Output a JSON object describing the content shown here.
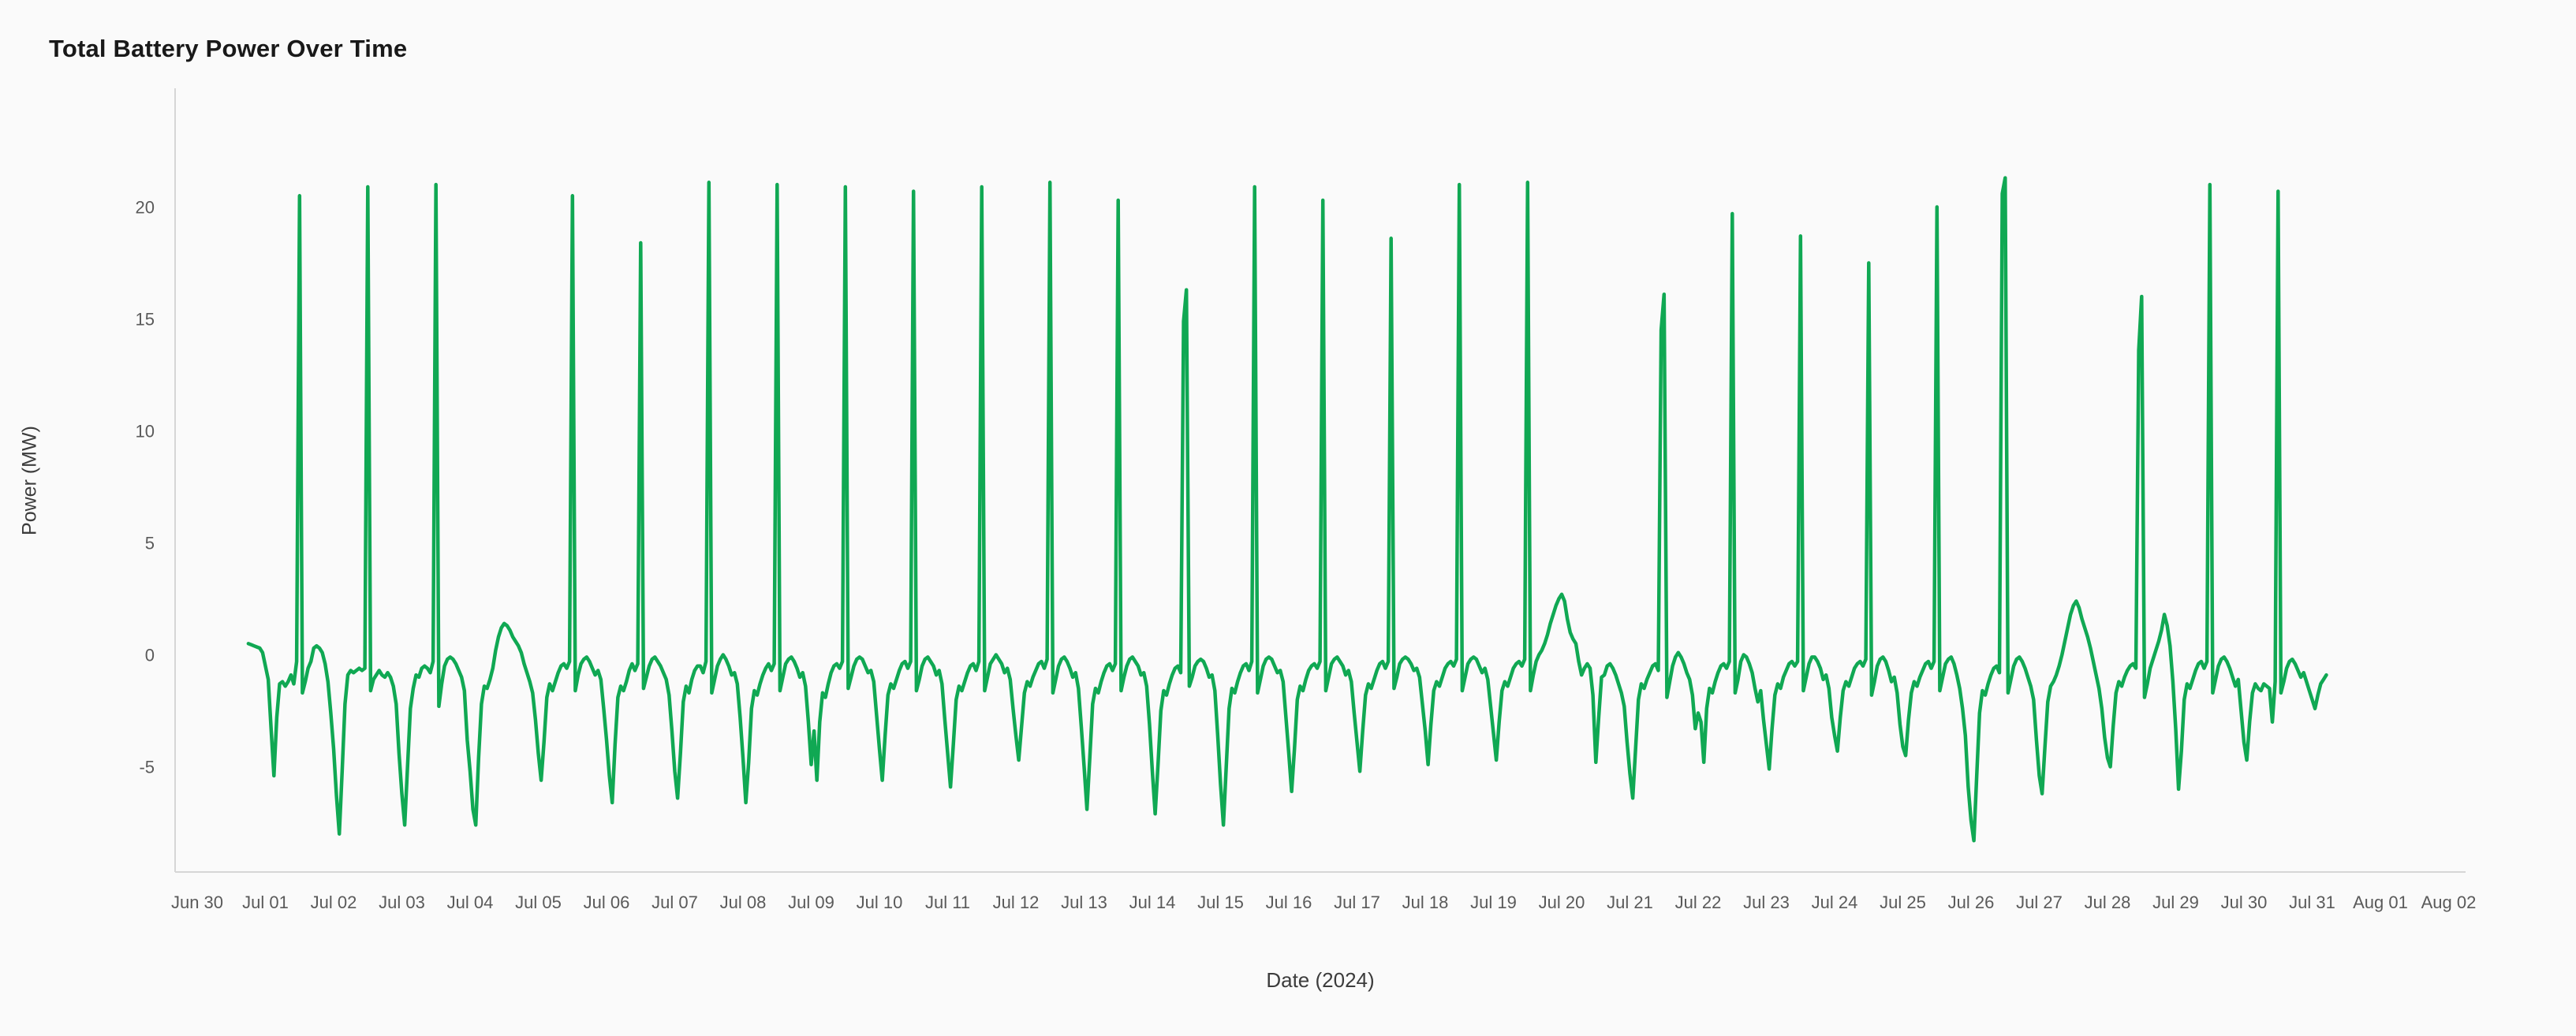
{
  "page": {
    "title": "Total Battery Power Over Time",
    "background_color": "#fafafa"
  },
  "chart_data": {
    "type": "line",
    "title": "Total Battery Power Over Time",
    "xlabel": "Date (2024)",
    "ylabel": "Power (MW)",
    "series_name": "Total battery power",
    "line_color": "#10a853",
    "line_width": 4.5,
    "axis_line_color": "#d6d6d6",
    "tick_text_color": "#5a5a5a",
    "grid": false,
    "legend": false,
    "ylim": [
      -9.7,
      25.3
    ],
    "y_ticks": [
      -5,
      0,
      5,
      10,
      15,
      20
    ],
    "x_tick_labels": [
      "Jun 30",
      "Jul 01",
      "Jul 02",
      "Jul 03",
      "Jul 04",
      "Jul 05",
      "Jul 06",
      "Jul 07",
      "Jul 08",
      "Jul 09",
      "Jul 10",
      "Jul 11",
      "Jul 12",
      "Jul 13",
      "Jul 14",
      "Jul 15",
      "Jul 16",
      "Jul 17",
      "Jul 18",
      "Jul 19",
      "Jul 20",
      "Jul 21",
      "Jul 22",
      "Jul 23",
      "Jul 24",
      "Jul 25",
      "Jul 26",
      "Jul 27",
      "Jul 28",
      "Jul 29",
      "Jul 30",
      "Jul 31",
      "Aug 01",
      "Aug 02"
    ],
    "sampling": "hourly",
    "start_day_index": 0,
    "start_hour": 18,
    "days": [
      {
        "label": "Jun 30",
        "values": [
          0.5,
          0.45,
          0.4,
          0.35,
          0.3,
          0.1
        ]
      },
      {
        "label": "Jul 01",
        "values": [
          -0.5,
          -1.1,
          -3.3,
          -5.4,
          -2.8,
          -1.3,
          -1.2,
          -1.4,
          -1.2,
          -0.9,
          -1.3,
          -0.3,
          20.5,
          -1.7,
          -1.2,
          -0.6,
          -0.3,
          0.3,
          0.4,
          0.3,
          0.1,
          -0.4,
          -1.2,
          -2.6
        ]
      },
      {
        "label": "Jul 02",
        "values": [
          -4.2,
          -6.3,
          -8.0,
          -5.2,
          -2.2,
          -0.9,
          -0.7,
          -0.8,
          -0.7,
          -0.6,
          -0.7,
          -0.6,
          20.9,
          -1.6,
          -1.1,
          -0.9,
          -0.7,
          -0.9,
          -1.0,
          -0.8,
          -1.0,
          -1.4,
          -2.2,
          -4.4
        ]
      },
      {
        "label": "Jul 03",
        "values": [
          -6.2,
          -7.6,
          -5.0,
          -2.4,
          -1.5,
          -0.9,
          -1.0,
          -0.6,
          -0.5,
          -0.6,
          -0.8,
          -0.3,
          21.0,
          -2.3,
          -1.3,
          -0.5,
          -0.2,
          -0.1,
          -0.2,
          -0.4,
          -0.7,
          -1.0,
          -1.6,
          -3.8
        ]
      },
      {
        "label": "Jul 04",
        "values": [
          -5.2,
          -6.9,
          -7.6,
          -4.6,
          -2.2,
          -1.4,
          -1.5,
          -1.1,
          -0.6,
          0.2,
          0.8,
          1.2,
          1.4,
          1.3,
          1.1,
          0.8,
          0.6,
          0.4,
          0.1,
          -0.4,
          -0.8,
          -1.2,
          -1.7,
          -2.9
        ]
      },
      {
        "label": "Jul 05",
        "values": [
          -4.4,
          -5.6,
          -3.9,
          -1.9,
          -1.3,
          -1.6,
          -1.2,
          -0.8,
          -0.5,
          -0.4,
          -0.6,
          -0.3,
          20.5,
          -1.6,
          -0.9,
          -0.4,
          -0.2,
          -0.1,
          -0.3,
          -0.6,
          -0.9,
          -0.7,
          -1.1,
          -2.4
        ]
      },
      {
        "label": "Jul 06",
        "values": [
          -3.8,
          -5.4,
          -6.6,
          -4.0,
          -1.9,
          -1.4,
          -1.6,
          -1.2,
          -0.7,
          -0.4,
          -0.7,
          -0.4,
          18.4,
          -1.5,
          -1.0,
          -0.5,
          -0.2,
          -0.1,
          -0.3,
          -0.5,
          -0.8,
          -1.1,
          -1.8,
          -3.4
        ]
      },
      {
        "label": "Jul 07",
        "values": [
          -5.2,
          -6.4,
          -4.4,
          -2.1,
          -1.4,
          -1.7,
          -1.1,
          -0.7,
          -0.5,
          -0.5,
          -0.8,
          -0.3,
          21.1,
          -1.7,
          -1.1,
          -0.5,
          -0.2,
          0.0,
          -0.2,
          -0.5,
          -0.9,
          -0.8,
          -1.3,
          -2.8
        ]
      },
      {
        "label": "Jul 08",
        "values": [
          -4.6,
          -6.6,
          -4.8,
          -2.4,
          -1.6,
          -1.8,
          -1.3,
          -0.9,
          -0.6,
          -0.4,
          -0.7,
          -0.4,
          21.0,
          -1.6,
          -1.0,
          -0.4,
          -0.2,
          -0.1,
          -0.3,
          -0.6,
          -1.0,
          -0.8,
          -1.4,
          -3.0
        ]
      },
      {
        "label": "Jul 09",
        "values": [
          -4.9,
          -3.4,
          -5.6,
          -3.0,
          -1.7,
          -1.9,
          -1.3,
          -0.8,
          -0.5,
          -0.4,
          -0.6,
          -0.3,
          20.9,
          -1.5,
          -1.0,
          -0.5,
          -0.2,
          -0.1,
          -0.2,
          -0.5,
          -0.8,
          -0.7,
          -1.2,
          -2.7
        ]
      },
      {
        "label": "Jul 10",
        "values": [
          -4.2,
          -5.6,
          -3.6,
          -1.8,
          -1.3,
          -1.5,
          -1.1,
          -0.7,
          -0.4,
          -0.3,
          -0.6,
          -0.3,
          20.7,
          -1.6,
          -1.1,
          -0.5,
          -0.2,
          -0.1,
          -0.3,
          -0.5,
          -0.9,
          -0.7,
          -1.3,
          -2.9
        ]
      },
      {
        "label": "Jul 11",
        "values": [
          -4.4,
          -5.9,
          -4.0,
          -2.0,
          -1.4,
          -1.6,
          -1.2,
          -0.8,
          -0.5,
          -0.4,
          -0.7,
          -0.3,
          20.9,
          -1.6,
          -1.0,
          -0.4,
          -0.2,
          0.0,
          -0.2,
          -0.4,
          -0.8,
          -0.6,
          -1.1,
          -2.4
        ]
      },
      {
        "label": "Jul 12",
        "values": [
          -3.6,
          -4.7,
          -3.2,
          -1.7,
          -1.2,
          -1.4,
          -1.0,
          -0.7,
          -0.4,
          -0.3,
          -0.6,
          -0.2,
          21.1,
          -1.7,
          -1.1,
          -0.5,
          -0.2,
          -0.1,
          -0.3,
          -0.6,
          -1.0,
          -0.8,
          -1.5,
          -3.2
        ]
      },
      {
        "label": "Jul 13",
        "values": [
          -5.0,
          -6.9,
          -4.6,
          -2.2,
          -1.5,
          -1.7,
          -1.2,
          -0.8,
          -0.5,
          -0.4,
          -0.7,
          -0.4,
          20.3,
          -1.6,
          -1.0,
          -0.5,
          -0.2,
          -0.1,
          -0.3,
          -0.5,
          -0.9,
          -0.8,
          -1.4,
          -3.1
        ]
      },
      {
        "label": "Jul 14",
        "values": [
          -5.2,
          -7.1,
          -4.9,
          -2.5,
          -1.6,
          -1.8,
          -1.3,
          -0.9,
          -0.6,
          -0.5,
          -0.8,
          14.9,
          16.3,
          -1.4,
          -1.0,
          -0.5,
          -0.3,
          -0.2,
          -0.3,
          -0.6,
          -1.0,
          -0.9,
          -1.6,
          -3.6
        ]
      },
      {
        "label": "Jul 15",
        "values": [
          -5.8,
          -7.6,
          -5.0,
          -2.4,
          -1.5,
          -1.7,
          -1.2,
          -0.8,
          -0.5,
          -0.4,
          -0.7,
          -0.3,
          20.9,
          -1.7,
          -1.1,
          -0.5,
          -0.2,
          -0.1,
          -0.2,
          -0.5,
          -0.8,
          -0.7,
          -1.2,
          -2.8
        ]
      },
      {
        "label": "Jul 16",
        "values": [
          -4.4,
          -6.1,
          -4.2,
          -2.0,
          -1.4,
          -1.6,
          -1.1,
          -0.7,
          -0.5,
          -0.4,
          -0.6,
          -0.3,
          20.3,
          -1.6,
          -1.0,
          -0.4,
          -0.2,
          -0.1,
          -0.3,
          -0.5,
          -0.9,
          -0.7,
          -1.2,
          -2.6
        ]
      },
      {
        "label": "Jul 17",
        "values": [
          -3.9,
          -5.2,
          -3.4,
          -1.8,
          -1.3,
          -1.5,
          -1.1,
          -0.7,
          -0.4,
          -0.3,
          -0.6,
          -0.3,
          18.6,
          -1.5,
          -1.0,
          -0.4,
          -0.2,
          -0.1,
          -0.2,
          -0.4,
          -0.7,
          -0.6,
          -1.0,
          -2.2
        ]
      },
      {
        "label": "Jul 18",
        "values": [
          -3.4,
          -4.9,
          -3.1,
          -1.6,
          -1.2,
          -1.4,
          -1.0,
          -0.6,
          -0.4,
          -0.3,
          -0.5,
          -0.2,
          21.0,
          -1.6,
          -1.0,
          -0.4,
          -0.2,
          -0.1,
          -0.2,
          -0.5,
          -0.8,
          -0.6,
          -1.1,
          -2.3
        ]
      },
      {
        "label": "Jul 19",
        "values": [
          -3.5,
          -4.7,
          -3.0,
          -1.6,
          -1.2,
          -1.4,
          -1.0,
          -0.6,
          -0.4,
          -0.3,
          -0.5,
          -0.2,
          21.1,
          -1.6,
          -0.9,
          -0.3,
          0.0,
          0.2,
          0.5,
          0.9,
          1.4,
          1.8,
          2.2,
          2.5
        ]
      },
      {
        "label": "Jul 20",
        "values": [
          2.7,
          2.4,
          1.6,
          1.0,
          0.7,
          0.5,
          -0.3,
          -0.9,
          -0.6,
          -0.4,
          -0.6,
          -1.8,
          -4.8,
          -2.8,
          -1.0,
          -0.9,
          -0.5,
          -0.4,
          -0.6,
          -0.9,
          -1.3,
          -1.7,
          -2.3,
          -3.9
        ]
      },
      {
        "label": "Jul 21",
        "values": [
          -5.3,
          -6.4,
          -4.2,
          -2.0,
          -1.3,
          -1.5,
          -1.1,
          -0.8,
          -0.5,
          -0.4,
          -0.7,
          14.5,
          16.1,
          -1.9,
          -1.2,
          -0.5,
          -0.1,
          0.1,
          -0.1,
          -0.4,
          -0.8,
          -1.1,
          -1.8,
          -3.3
        ]
      },
      {
        "label": "Jul 22",
        "values": [
          -2.6,
          -3.0,
          -4.8,
          -2.4,
          -1.5,
          -1.7,
          -1.2,
          -0.8,
          -0.5,
          -0.4,
          -0.6,
          -0.3,
          19.7,
          -1.7,
          -1.1,
          -0.3,
          0.0,
          -0.1,
          -0.4,
          -0.8,
          -1.5,
          -2.1,
          -1.6,
          -2.9
        ]
      },
      {
        "label": "Jul 23",
        "values": [
          -4.0,
          -5.1,
          -3.3,
          -1.8,
          -1.3,
          -1.5,
          -1.0,
          -0.7,
          -0.4,
          -0.3,
          -0.5,
          -0.3,
          18.7,
          -1.6,
          -1.0,
          -0.4,
          -0.1,
          -0.1,
          -0.3,
          -0.6,
          -1.1,
          -0.9,
          -1.5,
          -2.8
        ]
      },
      {
        "label": "Jul 24",
        "values": [
          -3.6,
          -4.3,
          -2.8,
          -1.6,
          -1.2,
          -1.4,
          -1.0,
          -0.6,
          -0.4,
          -0.3,
          -0.5,
          -0.2,
          17.5,
          -1.8,
          -1.2,
          -0.5,
          -0.2,
          -0.1,
          -0.3,
          -0.7,
          -1.2,
          -1.0,
          -1.7,
          -3.1
        ]
      },
      {
        "label": "Jul 25",
        "values": [
          -4.1,
          -4.5,
          -2.9,
          -1.7,
          -1.2,
          -1.4,
          -1.0,
          -0.7,
          -0.4,
          -0.3,
          -0.6,
          -0.3,
          20.0,
          -1.6,
          -1.0,
          -0.4,
          -0.2,
          -0.1,
          -0.4,
          -0.9,
          -1.5,
          -2.4,
          -3.6,
          -5.9
        ]
      },
      {
        "label": "Jul 26",
        "values": [
          -7.4,
          -8.3,
          -5.4,
          -2.6,
          -1.6,
          -1.8,
          -1.3,
          -0.9,
          -0.6,
          -0.5,
          -0.8,
          20.6,
          21.3,
          -1.7,
          -1.1,
          -0.5,
          -0.2,
          -0.1,
          -0.3,
          -0.6,
          -1.0,
          -1.4,
          -2.0,
          -3.8
        ]
      },
      {
        "label": "Jul 27",
        "values": [
          -5.4,
          -6.2,
          -4.1,
          -2.1,
          -1.4,
          -1.2,
          -0.9,
          -0.5,
          0.0,
          0.6,
          1.2,
          1.8,
          2.2,
          2.4,
          2.1,
          1.6,
          1.2,
          0.8,
          0.3,
          -0.3,
          -0.9,
          -1.5,
          -2.4,
          -3.7
        ]
      },
      {
        "label": "Jul 28",
        "values": [
          -4.6,
          -5.0,
          -3.2,
          -1.7,
          -1.2,
          -1.4,
          -1.0,
          -0.7,
          -0.5,
          -0.4,
          -0.6,
          13.6,
          16.0,
          -1.9,
          -1.3,
          -0.6,
          -0.2,
          0.2,
          0.6,
          1.1,
          1.8,
          1.3,
          0.4,
          -1.2
        ]
      },
      {
        "label": "Jul 29",
        "values": [
          -3.3,
          -6.0,
          -4.3,
          -2.0,
          -1.3,
          -1.5,
          -1.1,
          -0.7,
          -0.4,
          -0.3,
          -0.6,
          -0.3,
          21.0,
          -1.7,
          -1.1,
          -0.5,
          -0.2,
          -0.1,
          -0.3,
          -0.6,
          -1.0,
          -1.4,
          -1.1,
          -2.5
        ]
      },
      {
        "label": "Jul 30",
        "values": [
          -3.9,
          -4.7,
          -3.0,
          -1.7,
          -1.3,
          -1.5,
          -1.6,
          -1.3,
          -1.4,
          -1.5,
          -3.0,
          -1.2,
          20.7,
          -1.7,
          -1.2,
          -0.6,
          -0.3,
          -0.2,
          -0.4,
          -0.7,
          -1.0,
          -0.8,
          -1.2,
          -1.6
        ]
      },
      {
        "label": "Jul 31",
        "values": [
          -2.0,
          -2.4,
          -1.8,
          -1.3,
          -1.1,
          -0.9
        ]
      }
    ]
  }
}
